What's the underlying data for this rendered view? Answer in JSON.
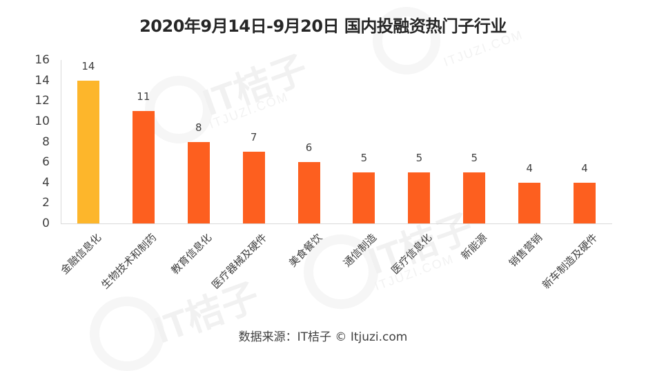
{
  "title": "2020年9月14日-9月20日 国内投融资热门子行业",
  "source": "数据来源：IT桔子 © Itjuzi.com",
  "watermark": {
    "brand": "IT桔子",
    "domain": "ITJUZI.COM"
  },
  "colors": {
    "highlight": "#FDB62B",
    "bar": "#FD5F1F",
    "axis": "#D9D9D9"
  },
  "chart_data": {
    "type": "bar",
    "title": "2020年9月14日-9月20日 国内投融资热门子行业",
    "xlabel": "",
    "ylabel": "",
    "ylim": [
      0,
      16
    ],
    "yticks": [
      0,
      2,
      4,
      6,
      8,
      10,
      12,
      14,
      16
    ],
    "grid": false,
    "legend": null,
    "categories": [
      "金融信息化",
      "生物技术和制药",
      "教育信息化",
      "医疗器械及硬件",
      "美食餐饮",
      "通信制造",
      "医疗信息化",
      "新能源",
      "销售营销",
      "新车制造及硬件"
    ],
    "values": [
      14,
      11,
      8,
      7,
      6,
      5,
      5,
      5,
      4,
      4
    ],
    "bar_colors": [
      "#FDB62B",
      "#FD5F1F",
      "#FD5F1F",
      "#FD5F1F",
      "#FD5F1F",
      "#FD5F1F",
      "#FD5F1F",
      "#FD5F1F",
      "#FD5F1F",
      "#FD5F1F"
    ],
    "data_labels": true,
    "annotations": [
      "数据来源：IT桔子 © Itjuzi.com"
    ]
  }
}
